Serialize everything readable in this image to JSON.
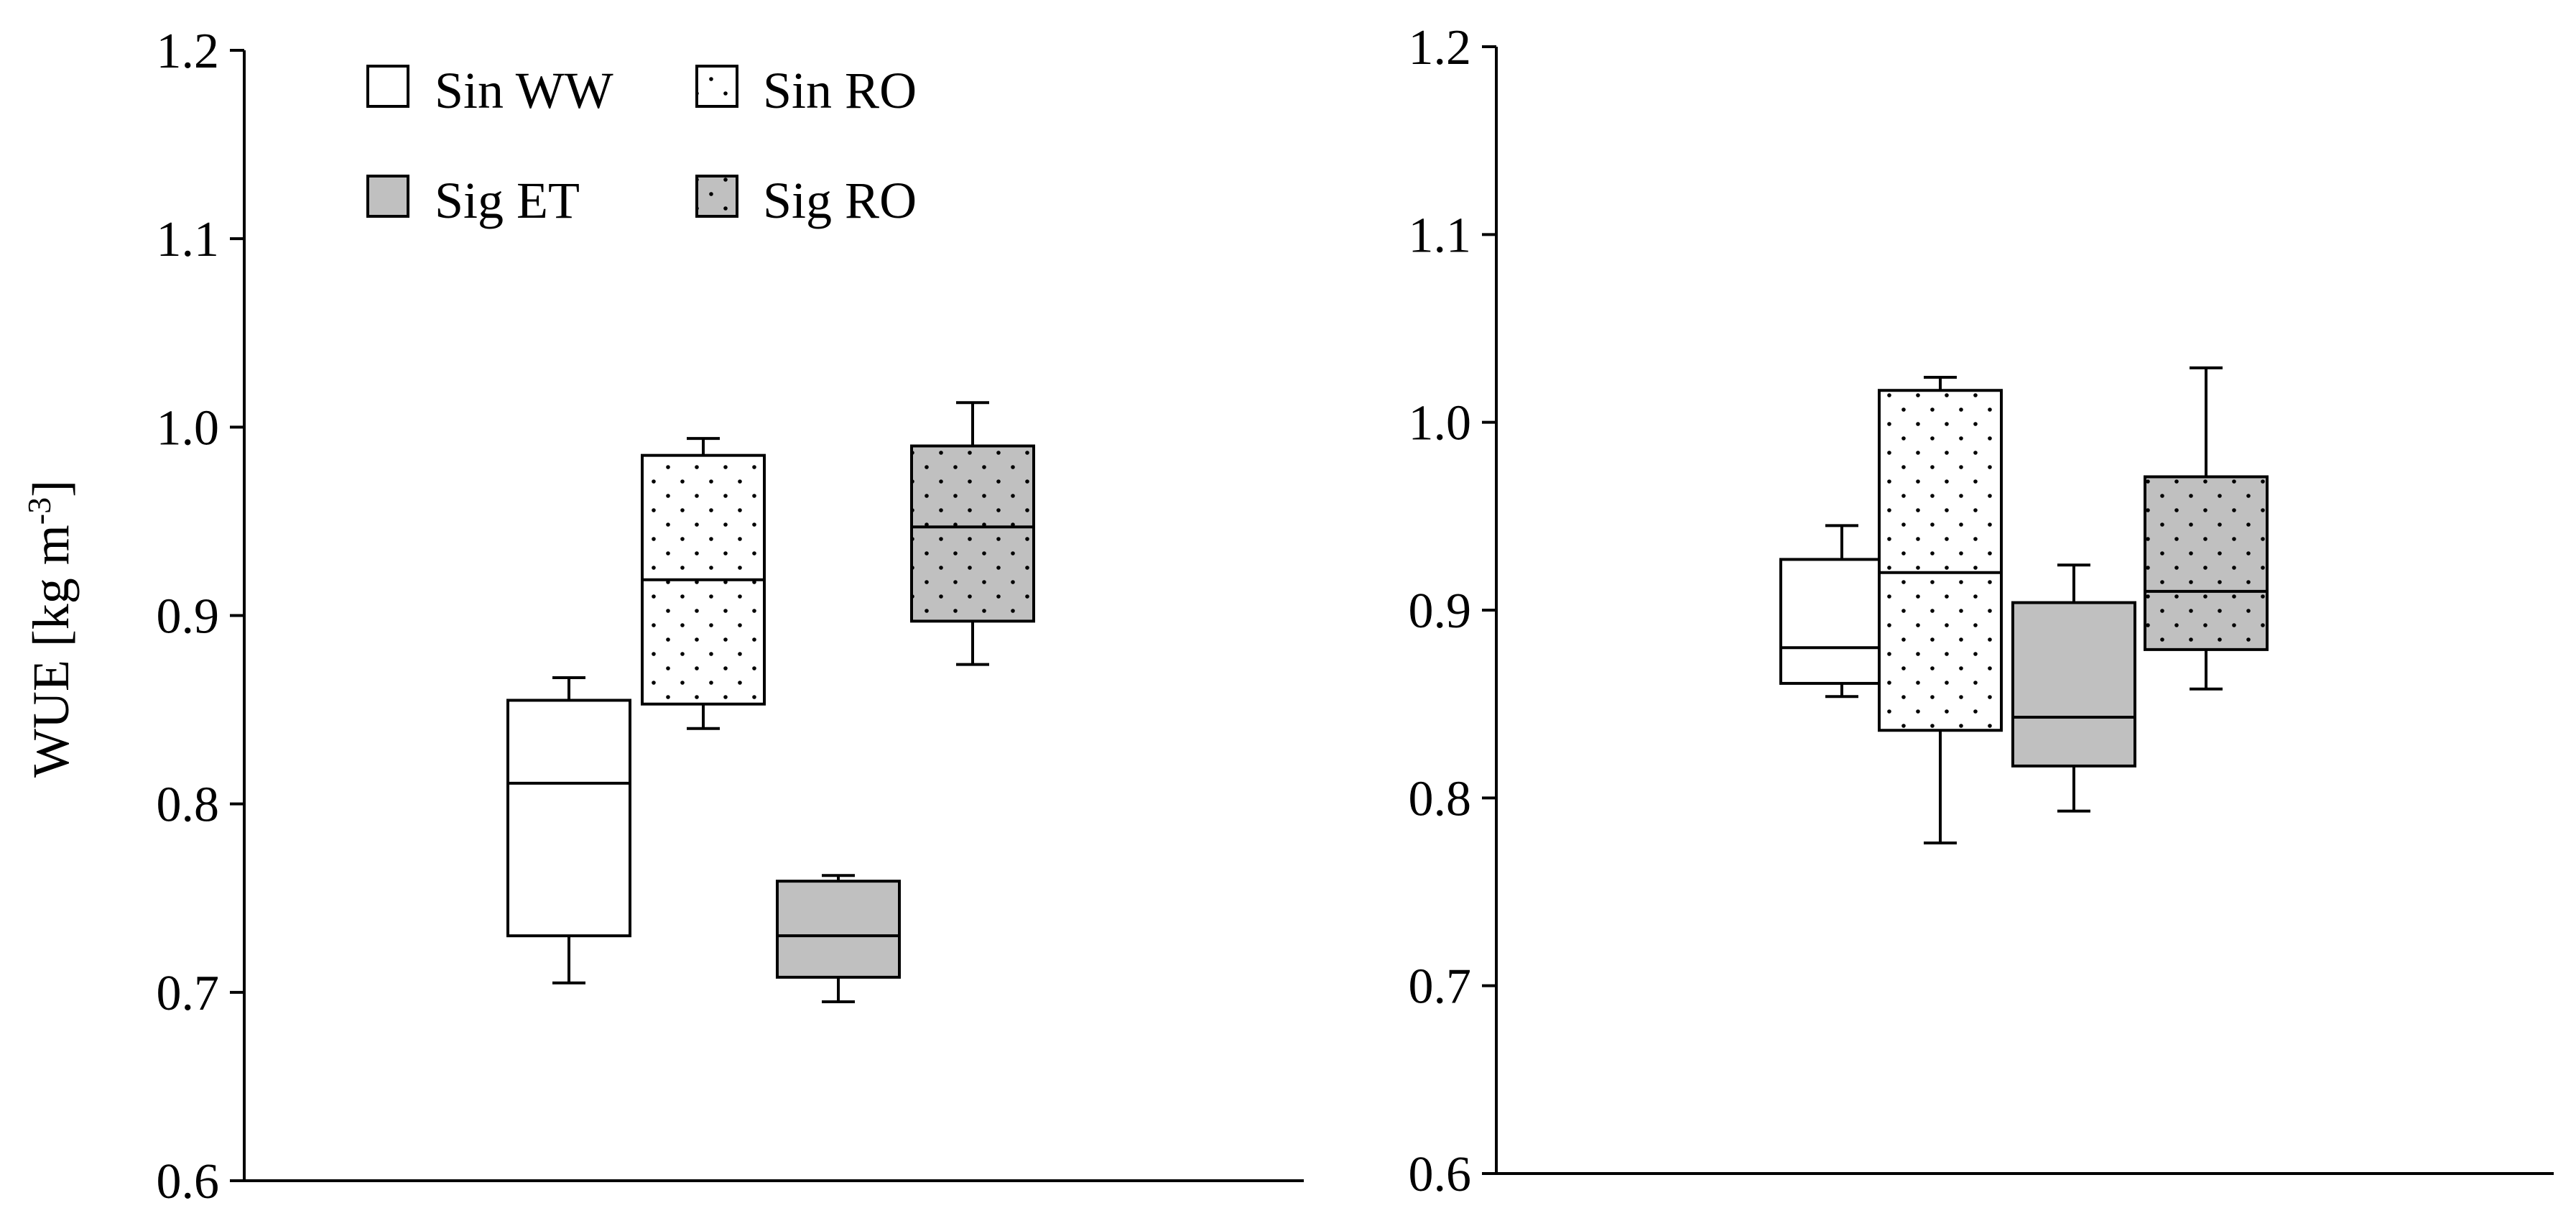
{
  "chart_data": [
    {
      "type": "box",
      "ylabel": "WUE [kg m-3]",
      "ylabel_parts": {
        "base": "WUE [kg m",
        "sup": "-3",
        "close": "]"
      },
      "ylim": [
        0.6,
        1.2
      ],
      "yticks": [
        "0.6",
        "0.7",
        "0.8",
        "0.9",
        "1.0",
        "1.1",
        "1.2"
      ],
      "grid": false,
      "legend": {
        "placement": "top-left",
        "entries": [
          "Sin WW",
          "Sin RO",
          "Sig ET",
          "Sig RO"
        ]
      },
      "series": [
        {
          "name": "Sin WW",
          "fill": "white",
          "pattern": "none",
          "whisker_low": 0.705,
          "q1": 0.73,
          "median": 0.811,
          "q3": 0.855,
          "whisker_high": 0.867
        },
        {
          "name": "Sin RO",
          "fill": "white",
          "pattern": "dots",
          "whisker_low": 0.84,
          "q1": 0.853,
          "median": 0.919,
          "q3": 0.985,
          "whisker_high": 0.994
        },
        {
          "name": "Sig ET",
          "fill": "gray",
          "pattern": "none",
          "whisker_low": 0.695,
          "q1": 0.708,
          "median": 0.73,
          "q3": 0.759,
          "whisker_high": 0.762
        },
        {
          "name": "Sig RO",
          "fill": "gray",
          "pattern": "dots",
          "whisker_low": 0.874,
          "q1": 0.897,
          "median": 0.947,
          "q3": 0.99,
          "whisker_high": 1.013
        }
      ]
    },
    {
      "type": "box",
      "ylim": [
        0.6,
        1.2
      ],
      "yticks": [
        "0.6",
        "0.7",
        "0.8",
        "0.9",
        "1.0",
        "1.1",
        "1.2"
      ],
      "grid": false,
      "series": [
        {
          "name": "Sin WW",
          "fill": "white",
          "pattern": "none",
          "whisker_low": 0.854,
          "q1": 0.861,
          "median": 0.88,
          "q3": 0.927,
          "whisker_high": 0.945
        },
        {
          "name": "Sin RO",
          "fill": "white",
          "pattern": "dots",
          "whisker_low": 0.776,
          "q1": 0.836,
          "median": 0.92,
          "q3": 1.017,
          "whisker_high": 1.024
        },
        {
          "name": "Sig ET",
          "fill": "gray",
          "pattern": "none",
          "whisker_low": 0.793,
          "q1": 0.817,
          "median": 0.843,
          "q3": 0.904,
          "whisker_high": 0.924
        },
        {
          "name": "Sig RO",
          "fill": "gray",
          "pattern": "dots",
          "whisker_low": 0.858,
          "q1": 0.879,
          "median": 0.91,
          "q3": 0.971,
          "whisker_high": 1.029
        }
      ]
    }
  ],
  "colors": {
    "gray_fill": "#c0c0c0",
    "white_fill": "#ffffff",
    "line": "#000000",
    "dot": "#000000"
  }
}
